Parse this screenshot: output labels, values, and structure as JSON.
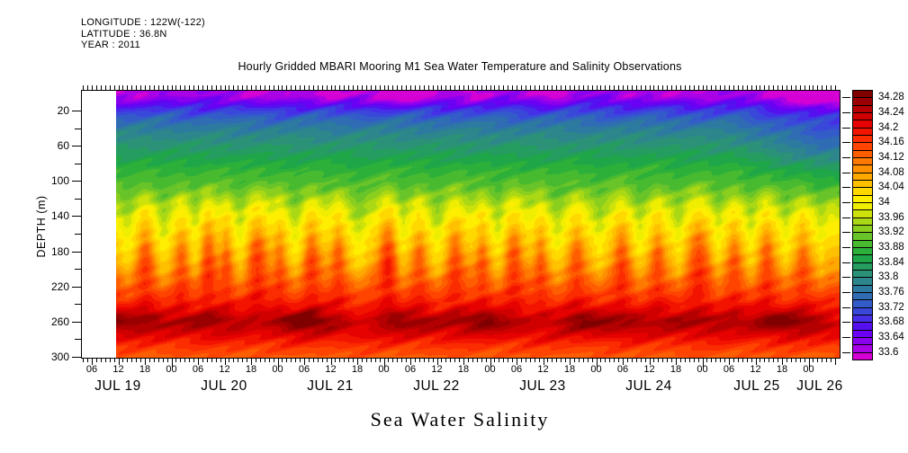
{
  "header": {
    "line1": "LONGITUDE : 122W(-122)",
    "line2": "LATITUDE : 36.8N",
    "line3": "YEAR : 2011"
  },
  "title": "Hourly Gridded MBARI Mooring M1 Sea Water Temperature and Salinity Observations",
  "bottom_title": "Sea Water Salinity",
  "y_axis": {
    "label": "DEPTH (m)",
    "tick_labels": [
      "20",
      "60",
      "100",
      "140",
      "180",
      "220",
      "260",
      "300"
    ]
  },
  "x_axis": {
    "hour_labels": [
      "06",
      "12",
      "18",
      "00",
      "06",
      "12",
      "18",
      "00",
      "06",
      "12",
      "18",
      "00",
      "06",
      "12",
      "18",
      "00",
      "06",
      "12",
      "18",
      "00",
      "06",
      "12",
      "18",
      "00",
      "06",
      "12",
      "18",
      "00"
    ],
    "date_labels": [
      "JUL 19",
      "JUL 20",
      "JUL 21",
      "JUL 22",
      "JUL 23",
      "JUL 24",
      "JUL 25",
      "JUL 26"
    ]
  },
  "colorbar": {
    "labels": [
      "34.28",
      "34.24",
      "34.2",
      "34.16",
      "34.12",
      "34.08",
      "34.04",
      "34",
      "33.96",
      "33.92",
      "33.88",
      "33.84",
      "33.8",
      "33.76",
      "33.72",
      "33.68",
      "33.64",
      "33.6"
    ],
    "colors_ascending": [
      "#d400d4",
      "#aa00e6",
      "#8800ee",
      "#6a00f4",
      "#5510f0",
      "#4530e8",
      "#3a48da",
      "#335cc8",
      "#2f6cb4",
      "#2d7aa0",
      "#2c868c",
      "#2b9278",
      "#259c60",
      "#1fa648",
      "#2cb03a",
      "#48ba30",
      "#68c428",
      "#8ace1e",
      "#aad814",
      "#cce20a",
      "#f0ee00",
      "#ffee00",
      "#ffd800",
      "#ffc000",
      "#ffa800",
      "#ff9000",
      "#ff7800",
      "#ff5e00",
      "#ff4400",
      "#fb2c00",
      "#f31400",
      "#e60200",
      "#d00000",
      "#b40000",
      "#9a0000",
      "#800000"
    ]
  },
  "chart_data": {
    "type": "heatmap",
    "title": "Hourly Gridded MBARI Mooring M1 Sea Water Temperature and Salinity Observations",
    "variable": "Sea Water Salinity",
    "x_dates": [
      "JUL 19",
      "JUL 20",
      "JUL 21",
      "JUL 22",
      "JUL 23",
      "JUL 24",
      "JUL 25",
      "JUL 26"
    ],
    "x_minor_tick_hours": 1,
    "x_label_interval_hours": 6,
    "data_starts": "JUL 19 12:00",
    "ylabel": "DEPTH (m)",
    "depth_range_m": [
      0,
      300
    ],
    "salinity_levels": {
      "label_min": 33.6,
      "label_max": 34.28,
      "label_step": 0.04,
      "segment_step": 0.02,
      "segments": 36
    },
    "depth_profile": [
      [
        0,
        33.63
      ],
      [
        8,
        33.66
      ],
      [
        18,
        33.7
      ],
      [
        30,
        33.75
      ],
      [
        45,
        33.79
      ],
      [
        60,
        33.82
      ],
      [
        75,
        33.85
      ],
      [
        90,
        33.88
      ],
      [
        105,
        33.9
      ],
      [
        120,
        33.94
      ],
      [
        135,
        33.98
      ],
      [
        150,
        34.01
      ],
      [
        165,
        34.03
      ],
      [
        180,
        34.05
      ],
      [
        195,
        34.08
      ],
      [
        210,
        34.12
      ],
      [
        225,
        34.15
      ],
      [
        240,
        34.19
      ],
      [
        250,
        34.23
      ],
      [
        256,
        34.265
      ],
      [
        262,
        34.26
      ],
      [
        268,
        34.235
      ],
      [
        275,
        34.21
      ],
      [
        285,
        34.17
      ],
      [
        300,
        34.13
      ]
    ],
    "deep_maximum_band_m": 256,
    "plumes": [
      {
        "x": 0.015,
        "a": -22,
        "w": 0.01
      },
      {
        "x": 0.04,
        "a": 38,
        "w": 0.012
      },
      {
        "x": 0.065,
        "a": -24,
        "w": 0.01
      },
      {
        "x": 0.09,
        "a": 30,
        "w": 0.01
      },
      {
        "x": 0.11,
        "a": -20,
        "w": 0.008
      },
      {
        "x": 0.127,
        "a": 42,
        "w": 0.012
      },
      {
        "x": 0.152,
        "a": 30,
        "w": 0.008
      },
      {
        "x": 0.172,
        "a": -22,
        "w": 0.009
      },
      {
        "x": 0.195,
        "a": 44,
        "w": 0.014
      },
      {
        "x": 0.226,
        "a": 28,
        "w": 0.009
      },
      {
        "x": 0.248,
        "a": -24,
        "w": 0.01
      },
      {
        "x": 0.27,
        "a": 40,
        "w": 0.012
      },
      {
        "x": 0.307,
        "a": 34,
        "w": 0.01
      },
      {
        "x": 0.335,
        "a": -26,
        "w": 0.012
      },
      {
        "x": 0.3755,
        "a": 52,
        "w": 0.013
      },
      {
        "x": 0.396,
        "a": -20,
        "w": 0.008
      },
      {
        "x": 0.419,
        "a": 30,
        "w": 0.01
      },
      {
        "x": 0.444,
        "a": -24,
        "w": 0.01
      },
      {
        "x": 0.469,
        "a": 38,
        "w": 0.012
      },
      {
        "x": 0.506,
        "a": 30,
        "w": 0.009
      },
      {
        "x": 0.528,
        "a": -22,
        "w": 0.009
      },
      {
        "x": 0.55,
        "a": 40,
        "w": 0.012
      },
      {
        "x": 0.587,
        "a": 30,
        "w": 0.009
      },
      {
        "x": 0.61,
        "a": -24,
        "w": 0.01
      },
      {
        "x": 0.637,
        "a": 34,
        "w": 0.011
      },
      {
        "x": 0.668,
        "a": -22,
        "w": 0.01
      },
      {
        "x": 0.699,
        "a": 40,
        "w": 0.012
      },
      {
        "x": 0.724,
        "a": -22,
        "w": 0.009
      },
      {
        "x": 0.749,
        "a": 34,
        "w": 0.01
      },
      {
        "x": 0.778,
        "a": -22,
        "w": 0.009
      },
      {
        "x": 0.806,
        "a": 44,
        "w": 0.016
      },
      {
        "x": 0.832,
        "a": -20,
        "w": 0.008
      },
      {
        "x": 0.855,
        "a": 32,
        "w": 0.01
      },
      {
        "x": 0.878,
        "a": -20,
        "w": 0.008
      },
      {
        "x": 0.9,
        "a": 36,
        "w": 0.011
      },
      {
        "x": 0.926,
        "a": -20,
        "w": 0.008
      },
      {
        "x": 0.95,
        "a": 30,
        "w": 0.01
      },
      {
        "x": 0.975,
        "a": -18,
        "w": 0.008
      }
    ]
  }
}
